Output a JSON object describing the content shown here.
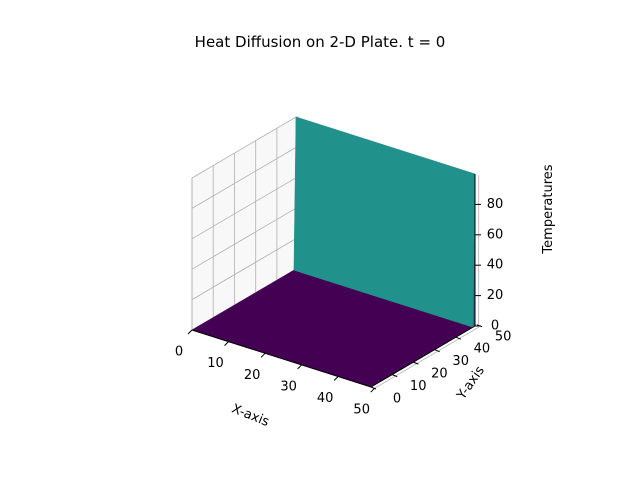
{
  "chart_data": {
    "type": "surface",
    "title": "Heat Diffusion on 2-D Plate. t = 0",
    "xlabel": "X-axis",
    "ylabel": "Y-axis",
    "zlabel": "Temperatures",
    "xlim": [
      0,
      49
    ],
    "ylim": [
      0,
      49
    ],
    "zlim": [
      0,
      100
    ],
    "x_ticks": [
      0,
      10,
      20,
      30,
      40,
      50
    ],
    "y_ticks": [
      0,
      10,
      20,
      30,
      40,
      50
    ],
    "z_ticks": [
      0,
      20,
      40,
      60,
      80
    ],
    "colormap": "viridis",
    "grid": true,
    "plate_temperature": 0,
    "edge_temperature": 100,
    "hot_edge": "y = 49 (top edge)",
    "colors": {
      "cold": "#440154",
      "hot": "#21918c",
      "transition": "#3b528b",
      "grid": "#b0b0b0"
    }
  }
}
